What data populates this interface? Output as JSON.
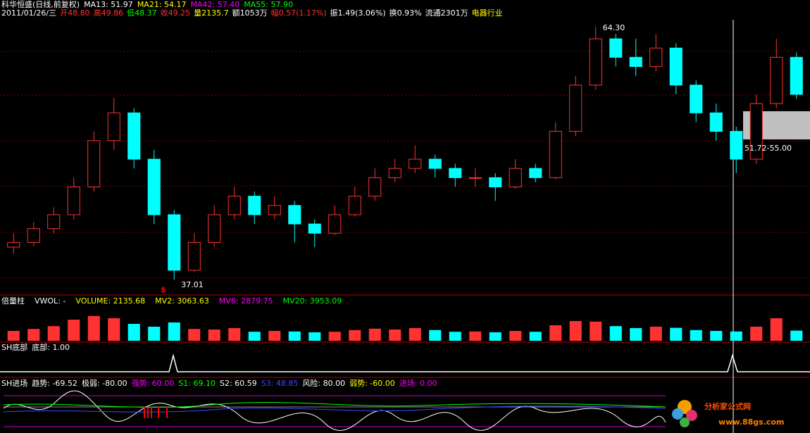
{
  "header": {
    "line1": [
      "科华恒盛(日线,前复权)",
      "MA13: 51.97",
      "MA21: 54.17",
      "MA42: 57.40",
      "MA55: 57.90"
    ],
    "line2": [
      "2011/01/26/三",
      "开48.80",
      "高49.86",
      "低48.37",
      "收49.25",
      "量2135.7",
      "额1053万",
      "幅0.57(1.17%)",
      "振1.49(3.06%)",
      "换0.93%",
      "流通2301万",
      "电器行业"
    ]
  },
  "price": {
    "annotations": {
      "high": "64.30",
      "low": "37.01",
      "range": "51.72-55.00"
    },
    "candles": [
      [
        40.5,
        42.0,
        39.8,
        41.0
      ],
      [
        41.0,
        43.2,
        40.6,
        42.5
      ],
      [
        42.5,
        44.8,
        42.0,
        44.0
      ],
      [
        44.0,
        48.0,
        43.5,
        47.0
      ],
      [
        47.0,
        53.0,
        46.5,
        52.0
      ],
      [
        52.0,
        56.6,
        51.0,
        55.0
      ],
      [
        55.0,
        55.5,
        49.0,
        50.0
      ],
      [
        50.0,
        51.0,
        43.0,
        44.0
      ],
      [
        44.0,
        44.5,
        37.01,
        38.0
      ],
      [
        38.0,
        42.0,
        37.8,
        41.0
      ],
      [
        41.0,
        45.0,
        40.5,
        44.0
      ],
      [
        44.0,
        47.0,
        43.5,
        46.0
      ],
      [
        46.0,
        46.5,
        43.0,
        44.0
      ],
      [
        44.0,
        46.0,
        43.5,
        45.0
      ],
      [
        45.0,
        45.5,
        41.0,
        43.0
      ],
      [
        43.0,
        43.5,
        40.5,
        42.0
      ],
      [
        42.0,
        45.0,
        41.8,
        44.0
      ],
      [
        44.0,
        47.0,
        43.8,
        46.0
      ],
      [
        46.0,
        49.0,
        45.5,
        48.0
      ],
      [
        48.0,
        50.0,
        47.5,
        49.0
      ],
      [
        49.0,
        51.5,
        48.5,
        50.0
      ],
      [
        50.0,
        50.5,
        48.0,
        49.0
      ],
      [
        49.0,
        49.5,
        47.0,
        48.0
      ],
      [
        48.0,
        49.0,
        47.0,
        48.0
      ],
      [
        48.0,
        48.5,
        45.5,
        47.0
      ],
      [
        47.0,
        50.0,
        46.8,
        49.0
      ],
      [
        49.0,
        49.5,
        47.5,
        48.0
      ],
      [
        48.0,
        54.0,
        47.8,
        53.0
      ],
      [
        53.0,
        59.0,
        52.5,
        58.0
      ],
      [
        58.0,
        64.3,
        57.5,
        63.0
      ],
      [
        63.0,
        63.5,
        60.0,
        61.0
      ],
      [
        61.0,
        63.0,
        59.0,
        60.0
      ],
      [
        60.0,
        63.5,
        59.5,
        62.0
      ],
      [
        62.0,
        62.5,
        57.0,
        58.0
      ],
      [
        58.0,
        58.5,
        54.0,
        55.0
      ],
      [
        55.0,
        56.0,
        52.0,
        53.0
      ],
      [
        53.0,
        53.5,
        48.5,
        50.0
      ],
      [
        50.0,
        57.0,
        49.5,
        56.0
      ],
      [
        56.0,
        63.0,
        55.5,
        61.0
      ],
      [
        61.0,
        61.5,
        56.5,
        57.0
      ]
    ]
  },
  "volume": {
    "labels": [
      "倍量柱",
      "VWOL: -",
      "VOLUME: 2135.68",
      "MV2: 3063.63",
      "MV6: 2879.75",
      "MV20: 3953.09"
    ],
    "values": [
      3500,
      4200,
      5200,
      7500,
      8800,
      8000,
      6000,
      5000,
      6500,
      4200,
      4000,
      4500,
      3200,
      3500,
      3300,
      3000,
      3200,
      3800,
      4300,
      4000,
      4500,
      3800,
      3200,
      3300,
      3000,
      3500,
      3200,
      5500,
      7000,
      6800,
      5200,
      4500,
      5000,
      4600,
      3800,
      3500,
      3300,
      5000,
      8000,
      3600
    ]
  },
  "bottom_pane": {
    "labels": [
      "SH底部",
      "底部: 1.00"
    ]
  },
  "entry_pane": {
    "labels": [
      "SH进场",
      "趋势: -69.52",
      "极弱: -80.00",
      "强势: 60.00",
      "S1: 69.10",
      "S2: 60.59",
      "S3: 48.85",
      "风险: 80.00",
      "弱势: -60.00",
      "进场: 0.00"
    ]
  },
  "watermark": {
    "name": "分析家公式网",
    "url": "www.88gs.com"
  }
}
